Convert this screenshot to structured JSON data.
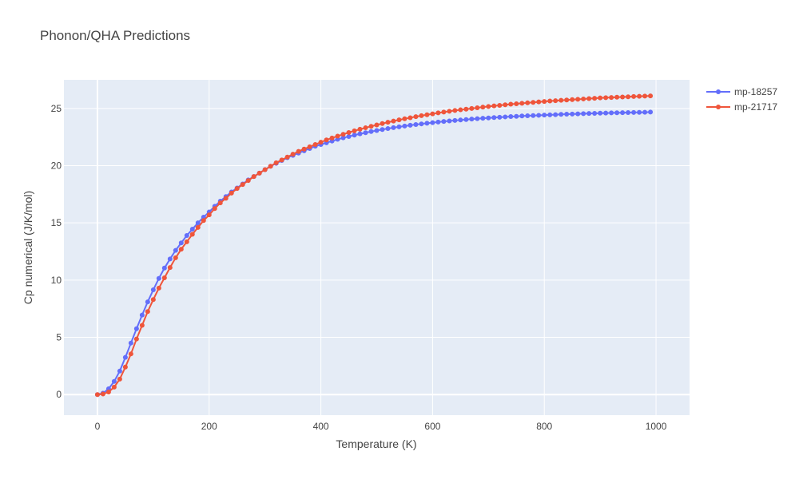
{
  "chart_data": {
    "type": "line",
    "title": "Phonon/QHA Predictions",
    "xlabel": "Temperature (K)",
    "ylabel": "Cp numerical (J/K/mol)",
    "xlim": [
      -60,
      1060
    ],
    "ylim": [
      -1.8,
      27.5
    ],
    "xticks": [
      0,
      200,
      400,
      600,
      800,
      1000
    ],
    "yticks": [
      0,
      5,
      10,
      15,
      20,
      25
    ],
    "grid": true,
    "legend_position": "top-right",
    "colors": {
      "plot_bg": "#e5ecf6",
      "grid": "#ffffff"
    },
    "series": [
      {
        "name": "mp-18257",
        "color": "#636efa",
        "x": [
          0,
          10,
          20,
          30,
          40,
          50,
          60,
          70,
          80,
          90,
          100,
          110,
          120,
          130,
          140,
          150,
          160,
          170,
          180,
          190,
          200,
          210,
          220,
          230,
          240,
          250,
          260,
          270,
          280,
          290,
          300,
          310,
          320,
          330,
          340,
          350,
          360,
          370,
          380,
          390,
          400,
          410,
          420,
          430,
          440,
          450,
          460,
          470,
          480,
          490,
          500,
          510,
          520,
          530,
          540,
          550,
          560,
          570,
          580,
          590,
          600,
          610,
          620,
          630,
          640,
          650,
          660,
          670,
          680,
          690,
          700,
          710,
          720,
          730,
          740,
          750,
          760,
          770,
          780,
          790,
          800,
          810,
          820,
          830,
          840,
          850,
          860,
          870,
          880,
          890,
          900,
          910,
          920,
          930,
          940,
          950,
          960,
          970,
          980,
          990
        ],
        "y": [
          0,
          0.12,
          0.5,
          1.15,
          2.05,
          3.25,
          4.5,
          5.75,
          6.95,
          8.1,
          9.15,
          10.15,
          11.05,
          11.85,
          12.6,
          13.25,
          13.9,
          14.45,
          15.0,
          15.5,
          15.95,
          16.45,
          16.9,
          17.3,
          17.7,
          18.05,
          18.4,
          18.75,
          19.05,
          19.35,
          19.65,
          19.95,
          20.2,
          20.45,
          20.7,
          20.9,
          21.1,
          21.3,
          21.5,
          21.7,
          21.85,
          22.0,
          22.15,
          22.3,
          22.43,
          22.55,
          22.67,
          22.78,
          22.88,
          22.98,
          23.07,
          23.16,
          23.24,
          23.32,
          23.39,
          23.46,
          23.53,
          23.59,
          23.65,
          23.71,
          23.76,
          23.81,
          23.86,
          23.91,
          23.95,
          23.99,
          24.03,
          24.07,
          24.11,
          24.14,
          24.17,
          24.2,
          24.23,
          24.26,
          24.29,
          24.31,
          24.34,
          24.36,
          24.38,
          24.4,
          24.42,
          24.44,
          24.46,
          24.48,
          24.5,
          24.51,
          24.53,
          24.54,
          24.56,
          24.57,
          24.59,
          24.6,
          24.61,
          24.62,
          24.63,
          24.64,
          24.65,
          24.66,
          24.67,
          24.68
        ]
      },
      {
        "name": "mp-21717",
        "color": "#ef553b",
        "x": [
          0,
          10,
          20,
          30,
          40,
          50,
          60,
          70,
          80,
          90,
          100,
          110,
          120,
          130,
          140,
          150,
          160,
          170,
          180,
          190,
          200,
          210,
          220,
          230,
          240,
          250,
          260,
          270,
          280,
          290,
          300,
          310,
          320,
          330,
          340,
          350,
          360,
          370,
          380,
          390,
          400,
          410,
          420,
          430,
          440,
          450,
          460,
          470,
          480,
          490,
          500,
          510,
          520,
          530,
          540,
          550,
          560,
          570,
          580,
          590,
          600,
          610,
          620,
          630,
          640,
          650,
          660,
          670,
          680,
          690,
          700,
          710,
          720,
          730,
          740,
          750,
          760,
          770,
          780,
          790,
          800,
          810,
          820,
          830,
          840,
          850,
          860,
          870,
          880,
          890,
          900,
          910,
          920,
          930,
          940,
          950,
          960,
          970,
          980,
          990
        ],
        "y": [
          0,
          0.05,
          0.22,
          0.65,
          1.35,
          2.4,
          3.55,
          4.85,
          6.05,
          7.25,
          8.3,
          9.3,
          10.2,
          11.1,
          11.95,
          12.7,
          13.35,
          14.0,
          14.6,
          15.2,
          15.7,
          16.25,
          16.75,
          17.15,
          17.6,
          18.0,
          18.35,
          18.7,
          19.05,
          19.35,
          19.65,
          19.95,
          20.25,
          20.5,
          20.75,
          21.0,
          21.25,
          21.45,
          21.65,
          21.85,
          22.05,
          22.25,
          22.42,
          22.58,
          22.74,
          22.9,
          23.04,
          23.18,
          23.31,
          23.44,
          23.56,
          23.68,
          23.79,
          23.9,
          24.0,
          24.1,
          24.19,
          24.28,
          24.37,
          24.45,
          24.53,
          24.61,
          24.68,
          24.75,
          24.82,
          24.88,
          24.94,
          25.0,
          25.06,
          25.12,
          25.17,
          25.22,
          25.27,
          25.32,
          25.37,
          25.41,
          25.45,
          25.49,
          25.53,
          25.57,
          25.61,
          25.65,
          25.68,
          25.71,
          25.74,
          25.77,
          25.8,
          25.83,
          25.86,
          25.89,
          25.92,
          25.94,
          25.96,
          25.98,
          26.0,
          26.02,
          26.04,
          26.06,
          26.08,
          26.1
        ]
      }
    ]
  }
}
